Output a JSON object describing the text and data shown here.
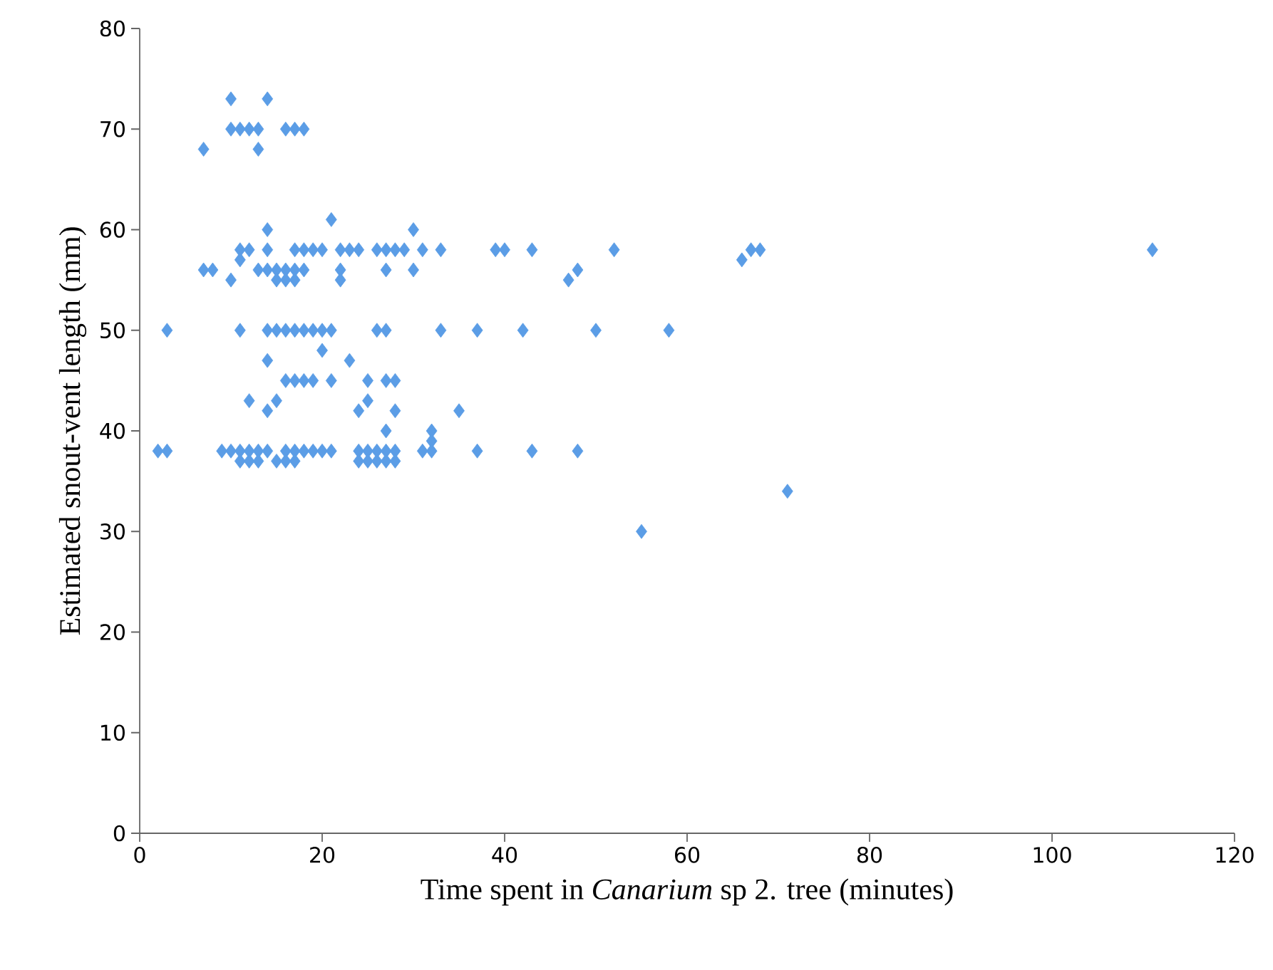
{
  "chart_data": {
    "type": "scatter",
    "xlabel": "Time spent in *Canarium* sp 2. tree (minutes)",
    "ylabel": "Estimated snout-vent length (mm)",
    "x": [
      10,
      14,
      10,
      11,
      12,
      13,
      16,
      17,
      18,
      7,
      13,
      21,
      14,
      30,
      11,
      12,
      14,
      17,
      18,
      19,
      20,
      22,
      23,
      24,
      26,
      27,
      28,
      29,
      31,
      33,
      39,
      40,
      43,
      52,
      67,
      68,
      111,
      11,
      66,
      7,
      8,
      13,
      14,
      15,
      16,
      17,
      18,
      22,
      27,
      30,
      48,
      10,
      15,
      16,
      17,
      22,
      47,
      3,
      11,
      14,
      15,
      16,
      17,
      18,
      19,
      20,
      21,
      26,
      27,
      33,
      37,
      42,
      50,
      58,
      20,
      14,
      23,
      16,
      17,
      18,
      19,
      21,
      25,
      27,
      28,
      12,
      15,
      25,
      14,
      24,
      28,
      35,
      27,
      32,
      32,
      2,
      3,
      9,
      10,
      11,
      12,
      13,
      14,
      16,
      17,
      18,
      19,
      20,
      21,
      24,
      25,
      26,
      27,
      28,
      31,
      32,
      37,
      43,
      48,
      11,
      12,
      13,
      15,
      16,
      17,
      24,
      25,
      26,
      27,
      28,
      71,
      55
    ],
    "values": [
      73,
      73,
      70,
      70,
      70,
      70,
      70,
      70,
      70,
      68,
      68,
      61,
      60,
      60,
      58,
      58,
      58,
      58,
      58,
      58,
      58,
      58,
      58,
      58,
      58,
      58,
      58,
      58,
      58,
      58,
      58,
      58,
      58,
      58,
      58,
      58,
      58,
      57,
      57,
      56,
      56,
      56,
      56,
      56,
      56,
      56,
      56,
      56,
      56,
      56,
      56,
      55,
      55,
      55,
      55,
      55,
      55,
      50,
      50,
      50,
      50,
      50,
      50,
      50,
      50,
      50,
      50,
      50,
      50,
      50,
      50,
      50,
      50,
      50,
      48,
      47,
      47,
      45,
      45,
      45,
      45,
      45,
      45,
      45,
      45,
      43,
      43,
      43,
      42,
      42,
      42,
      42,
      40,
      40,
      39,
      38,
      38,
      38,
      38,
      38,
      38,
      38,
      38,
      38,
      38,
      38,
      38,
      38,
      38,
      38,
      38,
      38,
      38,
      38,
      38,
      38,
      38,
      38,
      38,
      37,
      37,
      37,
      37,
      37,
      37,
      37,
      37,
      37,
      37,
      37,
      34,
      30
    ],
    "color": "#5b9de6",
    "marker": "diamond",
    "xlim": [
      0,
      120
    ],
    "xticks": [
      0,
      20,
      40,
      60,
      80,
      100,
      120
    ],
    "ylim": [
      0,
      80
    ],
    "yticks": [
      0,
      10,
      20,
      30,
      40,
      50,
      60,
      70,
      80
    ]
  }
}
